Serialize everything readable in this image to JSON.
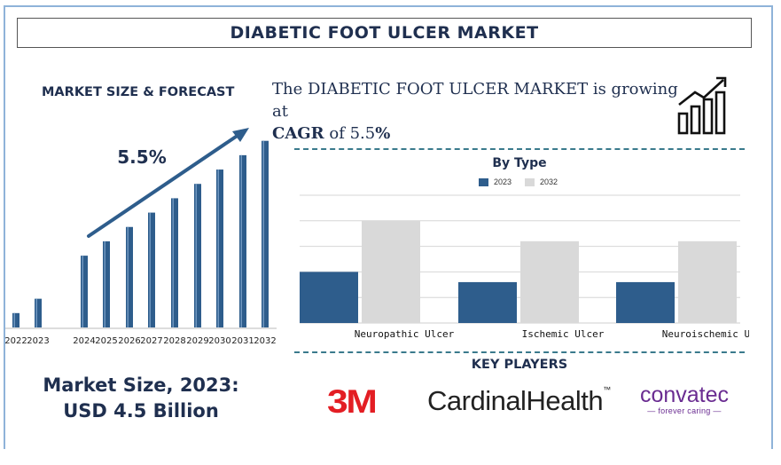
{
  "title": "DIABETIC FOOT ULCER MARKET",
  "left_heading": "MARKET SIZE & FORECAST",
  "cagr_sentence": {
    "prefix": "The DIABETIC FOOT ULCER MARKET is growing at",
    "cagr_label": "CAGR",
    "middle": "of 5.5",
    "suffix": "%"
  },
  "growth_label": "5.5%",
  "market_size": {
    "line1": "Market Size, 2023:",
    "line2": "USD 4.5 Billion"
  },
  "key_players_heading": "KEY PLAYERS",
  "key_players": {
    "p1": "3M",
    "p2": "CardinalHealth",
    "p2_tm": "™",
    "p3": "convatec",
    "p3_tag": "— forever caring —"
  },
  "colors": {
    "dark_blue": "#2e5d8c",
    "light_gray": "#d9d9d9",
    "title_navy": "#1f2f4f",
    "accent_3m": "#e31e24",
    "convatec_purple": "#6a2c91"
  },
  "icons": [
    "growth-chart-icon",
    "trend-arrow"
  ],
  "chart_data": [
    {
      "type": "bar",
      "categories": [
        "2022",
        "2023",
        "2024",
        "2025",
        "2026",
        "2027",
        "2028",
        "2029",
        "2030",
        "2031",
        "2032"
      ],
      "values": [
        1.0,
        2.0,
        5.0,
        6.0,
        7.0,
        8.0,
        9.0,
        10.0,
        11.0,
        12.0,
        13.0
      ],
      "ylim": [
        0,
        13.6
      ]
    },
    {
      "type": "bar",
      "title": "By Type",
      "categories": [
        "Neuropathic Ulcer",
        "Ischemic Ulcer",
        "Neuroischemic Ulcers"
      ],
      "series": [
        {
          "name": "2023",
          "values": [
            2.0,
            1.6,
            1.6
          ]
        },
        {
          "name": "2032",
          "values": [
            4.0,
            3.2,
            3.2
          ]
        }
      ],
      "ylim": [
        0,
        5
      ],
      "grid": true,
      "legend": "top-center"
    }
  ]
}
